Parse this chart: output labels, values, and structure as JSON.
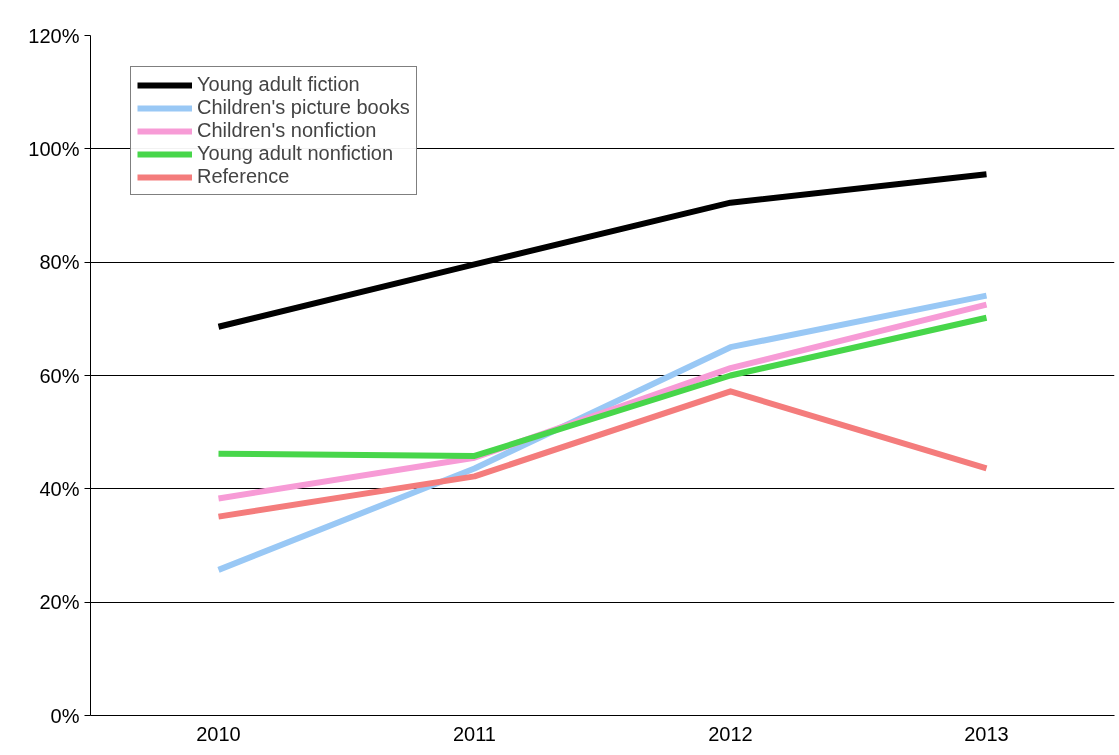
{
  "chart_data": {
    "type": "line",
    "categories": [
      "2010",
      "2011",
      "2012",
      "2013"
    ],
    "series": [
      {
        "name": "Young adult fiction",
        "color": "#000000",
        "values": [
          68.6,
          79.6,
          90.5,
          95.5
        ]
      },
      {
        "name": "Children's picture books",
        "color": "#99c8f5",
        "values": [
          25.7,
          43.6,
          65,
          74.1
        ]
      },
      {
        "name": "Children's nonfiction",
        "color": "#f79bd6",
        "values": [
          38.3,
          45.5,
          61.3,
          72.5
        ]
      },
      {
        "name": "Young adult nonfiction",
        "color": "#47d64a",
        "values": [
          46.2,
          45.8,
          60,
          70.2
        ]
      },
      {
        "name": "Reference",
        "color": "#f47c7c",
        "values": [
          35.1,
          42.2,
          57.2,
          43.6
        ]
      }
    ],
    "ylim": [
      0,
      120
    ],
    "yticks": [
      {
        "value": 0,
        "label": "0%"
      },
      {
        "value": 20,
        "label": "20%"
      },
      {
        "value": 40,
        "label": "40%"
      },
      {
        "value": 60,
        "label": "60%"
      },
      {
        "value": 80,
        "label": "80%"
      },
      {
        "value": 100,
        "label": "100%"
      },
      {
        "value": 120,
        "label": "120%"
      }
    ],
    "grid": "y",
    "legend": "top left",
    "marker": "none",
    "line_style": "solid"
  }
}
